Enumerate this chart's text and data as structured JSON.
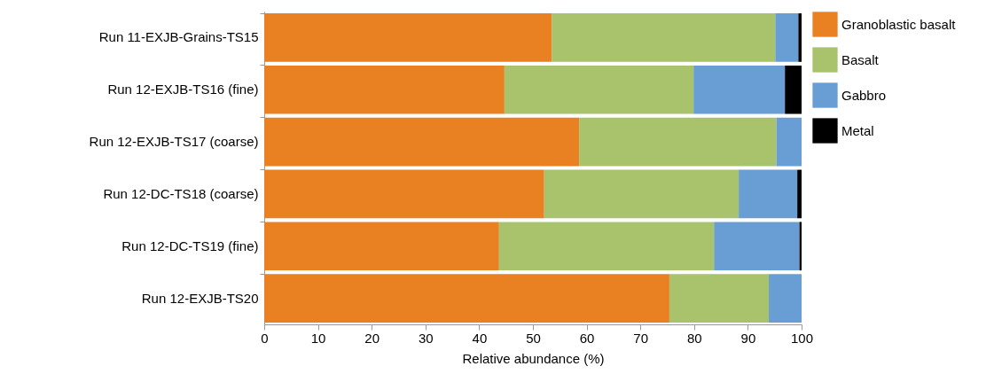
{
  "chart_data": {
    "type": "bar",
    "orientation": "horizontal",
    "stacked": true,
    "xlabel": "Relative abundance (%)",
    "categories": [
      "Run 11-EXJB-Grains-TS15",
      "Run 12-EXJB-TS16 (fine)",
      "Run 12-EXJB-TS17 (coarse)",
      "Run 12-DC-TS18 (coarse)",
      "Run 12-DC-TS19 (fine)",
      "Run 12-EXJB-TS20"
    ],
    "series": [
      {
        "name": "Granoblastic basalt",
        "color": "#e98122",
        "values": [
          53.5,
          44.7,
          58.6,
          52.1,
          43.7,
          75.4
        ]
      },
      {
        "name": "Basalt",
        "color": "#a9c26c",
        "values": [
          41.6,
          35.2,
          36.7,
          36.2,
          40.0,
          18.5
        ]
      },
      {
        "name": "Gabbro",
        "color": "#689ed3",
        "values": [
          4.3,
          17.0,
          4.7,
          10.9,
          15.9,
          6.1
        ]
      },
      {
        "name": "Metal",
        "color": "#000000",
        "values": [
          0.6,
          3.1,
          null,
          0.8,
          0.4,
          null
        ]
      }
    ],
    "xlim": [
      0,
      100
    ],
    "xticks": [
      0,
      10,
      20,
      30,
      40,
      50,
      60,
      70,
      80,
      90,
      100
    ],
    "grid": false,
    "legend": "right"
  }
}
